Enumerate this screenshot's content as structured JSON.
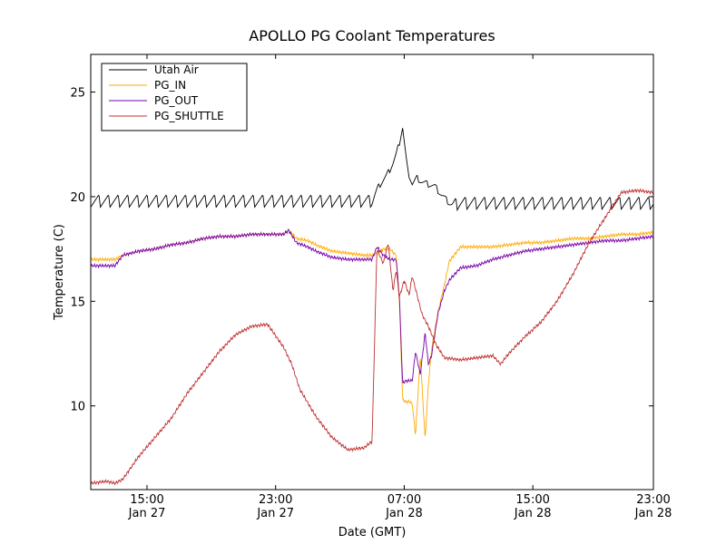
{
  "chart_data": {
    "type": "line",
    "title": "APOLLO PG Coolant Temperatures",
    "xlabel": "Date (GMT)",
    "ylabel": "Temperature (C)",
    "xlim": [
      10.0,
      45.0
    ],
    "ylim": [
      6.0,
      26.8
    ],
    "legend_position": "top-left",
    "grid": false,
    "x_ticks": [
      {
        "x": 13.5,
        "time": "15:00",
        "date": "Jan 27"
      },
      {
        "x": 21.5,
        "time": "23:00",
        "date": "Jan 27"
      },
      {
        "x": 29.5,
        "time": "07:00",
        "date": "Jan 28"
      },
      {
        "x": 37.5,
        "time": "15:00",
        "date": "Jan 28"
      },
      {
        "x": 45.5,
        "time": "23:00",
        "date": "Jan 28"
      }
    ],
    "y_ticks": [
      10,
      15,
      20,
      25
    ],
    "series": [
      {
        "name": "Utah Air",
        "color": "#000000",
        "style": "sawtooth",
        "x": [
          10,
          11,
          12,
          13,
          14,
          15,
          16,
          17,
          18,
          19,
          20,
          21,
          22,
          23,
          24,
          25,
          26,
          27,
          27.5,
          28.0,
          28.4,
          28.8,
          29.0,
          29.2,
          29.4,
          29.7,
          30.0,
          30.3,
          30.6,
          31.0,
          31.4,
          31.8,
          32.2,
          32.5,
          33,
          34,
          35,
          36,
          37,
          38,
          39,
          40,
          41,
          42,
          43,
          44,
          45
        ],
        "values": [
          19.8,
          19.8,
          19.8,
          19.8,
          19.8,
          19.8,
          19.8,
          19.8,
          19.8,
          19.8,
          19.8,
          19.8,
          19.8,
          19.8,
          19.8,
          19.8,
          19.8,
          19.8,
          19.8,
          20.6,
          21.0,
          21.6,
          22.0,
          22.6,
          23.3,
          21.3,
          20.6,
          20.9,
          20.7,
          20.6,
          20.5,
          20.1,
          19.8,
          19.6,
          19.7,
          19.7,
          19.7,
          19.7,
          19.7,
          19.7,
          19.7,
          19.7,
          19.7,
          19.7,
          19.7,
          19.7,
          19.7
        ],
        "amplitude": [
          0.6,
          0.6,
          0.6,
          0.6,
          0.6,
          0.6,
          0.6,
          0.6,
          0.6,
          0.6,
          0.6,
          0.6,
          0.6,
          0.6,
          0.6,
          0.6,
          0.6,
          0.6,
          0.6,
          0.3,
          0.3,
          0.3,
          0.3,
          0.3,
          0.2,
          0.3,
          0.3,
          0.3,
          0.3,
          0.3,
          0.3,
          0.3,
          0.3,
          0.6,
          0.6,
          0.6,
          0.6,
          0.6,
          0.6,
          0.6,
          0.6,
          0.6,
          0.6,
          0.6,
          0.6,
          0.6,
          0.6
        ]
      },
      {
        "name": "PG_IN",
        "color": "#ffaa00",
        "x": [
          10,
          11.5,
          12,
          13,
          14,
          15,
          16,
          17,
          18,
          19,
          20,
          21,
          22,
          22.3,
          22.8,
          23.5,
          24,
          25,
          26,
          27,
          27.5,
          27.8,
          28.2,
          28.6,
          29.0,
          29.2,
          29.4,
          29.6,
          29.8,
          30.0,
          30.2,
          30.5,
          30.8,
          31.0,
          31.2,
          31.6,
          32.0,
          32.3,
          33,
          34,
          35,
          36,
          37,
          38,
          39,
          40,
          41,
          42,
          43,
          44,
          45
        ],
        "values": [
          17.0,
          17.0,
          17.2,
          17.4,
          17.5,
          17.7,
          17.8,
          18.0,
          18.1,
          18.1,
          18.2,
          18.2,
          18.2,
          18.4,
          18.0,
          17.9,
          17.7,
          17.4,
          17.3,
          17.2,
          17.2,
          17.3,
          17.5,
          17.5,
          17.2,
          15.0,
          10.3,
          10.2,
          10.2,
          10.1,
          8.6,
          12.4,
          8.4,
          11.0,
          12.7,
          14.5,
          15.8,
          16.9,
          17.6,
          17.6,
          17.6,
          17.7,
          17.8,
          17.8,
          17.9,
          18.0,
          18.0,
          18.1,
          18.2,
          18.2,
          18.3
        ]
      },
      {
        "name": "PG_OUT",
        "color": "#7700aa",
        "x": [
          10,
          11.5,
          12,
          13,
          14,
          15,
          16,
          17,
          18,
          19,
          20,
          21,
          22,
          22.3,
          22.8,
          23.5,
          24,
          25,
          26,
          27,
          27.5,
          27.8,
          28.2,
          28.6,
          29.0,
          29.2,
          29.4,
          29.6,
          29.8,
          30.0,
          30.2,
          30.5,
          30.8,
          31.0,
          31.2,
          31.6,
          32.0,
          32.3,
          33,
          34,
          35,
          36,
          37,
          38,
          39,
          40,
          41,
          42,
          43,
          44,
          45
        ],
        "values": [
          16.7,
          16.7,
          17.2,
          17.4,
          17.5,
          17.7,
          17.8,
          18.0,
          18.1,
          18.1,
          18.2,
          18.2,
          18.2,
          18.4,
          17.8,
          17.6,
          17.4,
          17.1,
          17.0,
          17.0,
          17.0,
          17.6,
          17.2,
          17.0,
          17.0,
          15.2,
          11.1,
          11.2,
          11.2,
          11.2,
          12.6,
          11.5,
          13.5,
          12.0,
          12.4,
          14.4,
          15.5,
          16.0,
          16.6,
          16.7,
          17.0,
          17.2,
          17.4,
          17.5,
          17.6,
          17.7,
          17.8,
          17.9,
          17.9,
          18.0,
          18.1
        ]
      },
      {
        "name": "PG_SHUTTLE",
        "color": "#c03030",
        "x": [
          10,
          11,
          11.5,
          12,
          13,
          14,
          15,
          16,
          17,
          18,
          19,
          20,
          21,
          22,
          22.5,
          23,
          24,
          25,
          26,
          27,
          27.5,
          27.8,
          28.2,
          28.5,
          28.8,
          29.0,
          29.2,
          29.5,
          29.8,
          30.0,
          30.3,
          30.6,
          31.0,
          31.5,
          32,
          33,
          34,
          35,
          35.5,
          36,
          37,
          38,
          39,
          40,
          41,
          42,
          43,
          44,
          45
        ],
        "values": [
          6.3,
          6.4,
          6.3,
          6.5,
          7.6,
          8.5,
          9.4,
          10.6,
          11.6,
          12.6,
          13.4,
          13.8,
          13.9,
          12.8,
          12.0,
          10.8,
          9.5,
          8.5,
          7.9,
          8.0,
          8.3,
          17.5,
          16.8,
          17.8,
          15.5,
          16.5,
          15.2,
          16.0,
          15.3,
          16.2,
          15.3,
          14.4,
          13.8,
          12.9,
          12.3,
          12.2,
          12.3,
          12.4,
          12.0,
          12.5,
          13.3,
          14.0,
          15.0,
          16.3,
          17.8,
          19.0,
          20.2,
          20.3,
          20.2
        ]
      }
    ]
  }
}
